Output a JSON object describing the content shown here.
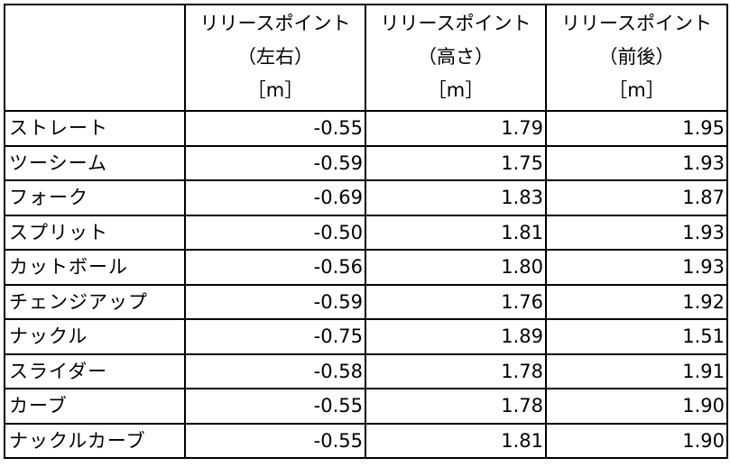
{
  "table": {
    "columns": [
      {
        "line1": "",
        "line2": "",
        "line3": ""
      },
      {
        "line1": "リリースポイント",
        "line2": "（左右）",
        "line3": "［m］"
      },
      {
        "line1": "リリースポイント",
        "line2": "（高さ）",
        "line3": "［m］"
      },
      {
        "line1": "リリースポイント",
        "line2": "（前後）",
        "line3": "［m］"
      }
    ],
    "rows": [
      {
        "pitch": "ストレート",
        "lr": "-0.55",
        "height": "1.79",
        "fb": "1.95"
      },
      {
        "pitch": "ツーシーム",
        "lr": "-0.59",
        "height": "1.75",
        "fb": "1.93"
      },
      {
        "pitch": "フォーク",
        "lr": "-0.69",
        "height": "1.83",
        "fb": "1.87"
      },
      {
        "pitch": "スプリット",
        "lr": "-0.50",
        "height": "1.81",
        "fb": "1.93"
      },
      {
        "pitch": "カットボール",
        "lr": "-0.56",
        "height": "1.80",
        "fb": "1.93"
      },
      {
        "pitch": "チェンジアップ",
        "lr": "-0.59",
        "height": "1.76",
        "fb": "1.92"
      },
      {
        "pitch": "ナックル",
        "lr": "-0.75",
        "height": "1.89",
        "fb": "1.51"
      },
      {
        "pitch": "スライダー",
        "lr": "-0.58",
        "height": "1.78",
        "fb": "1.91"
      },
      {
        "pitch": "カーブ",
        "lr": "-0.55",
        "height": "1.78",
        "fb": "1.90"
      },
      {
        "pitch": "ナックルカーブ",
        "lr": "-0.55",
        "height": "1.81",
        "fb": "1.90"
      }
    ]
  }
}
